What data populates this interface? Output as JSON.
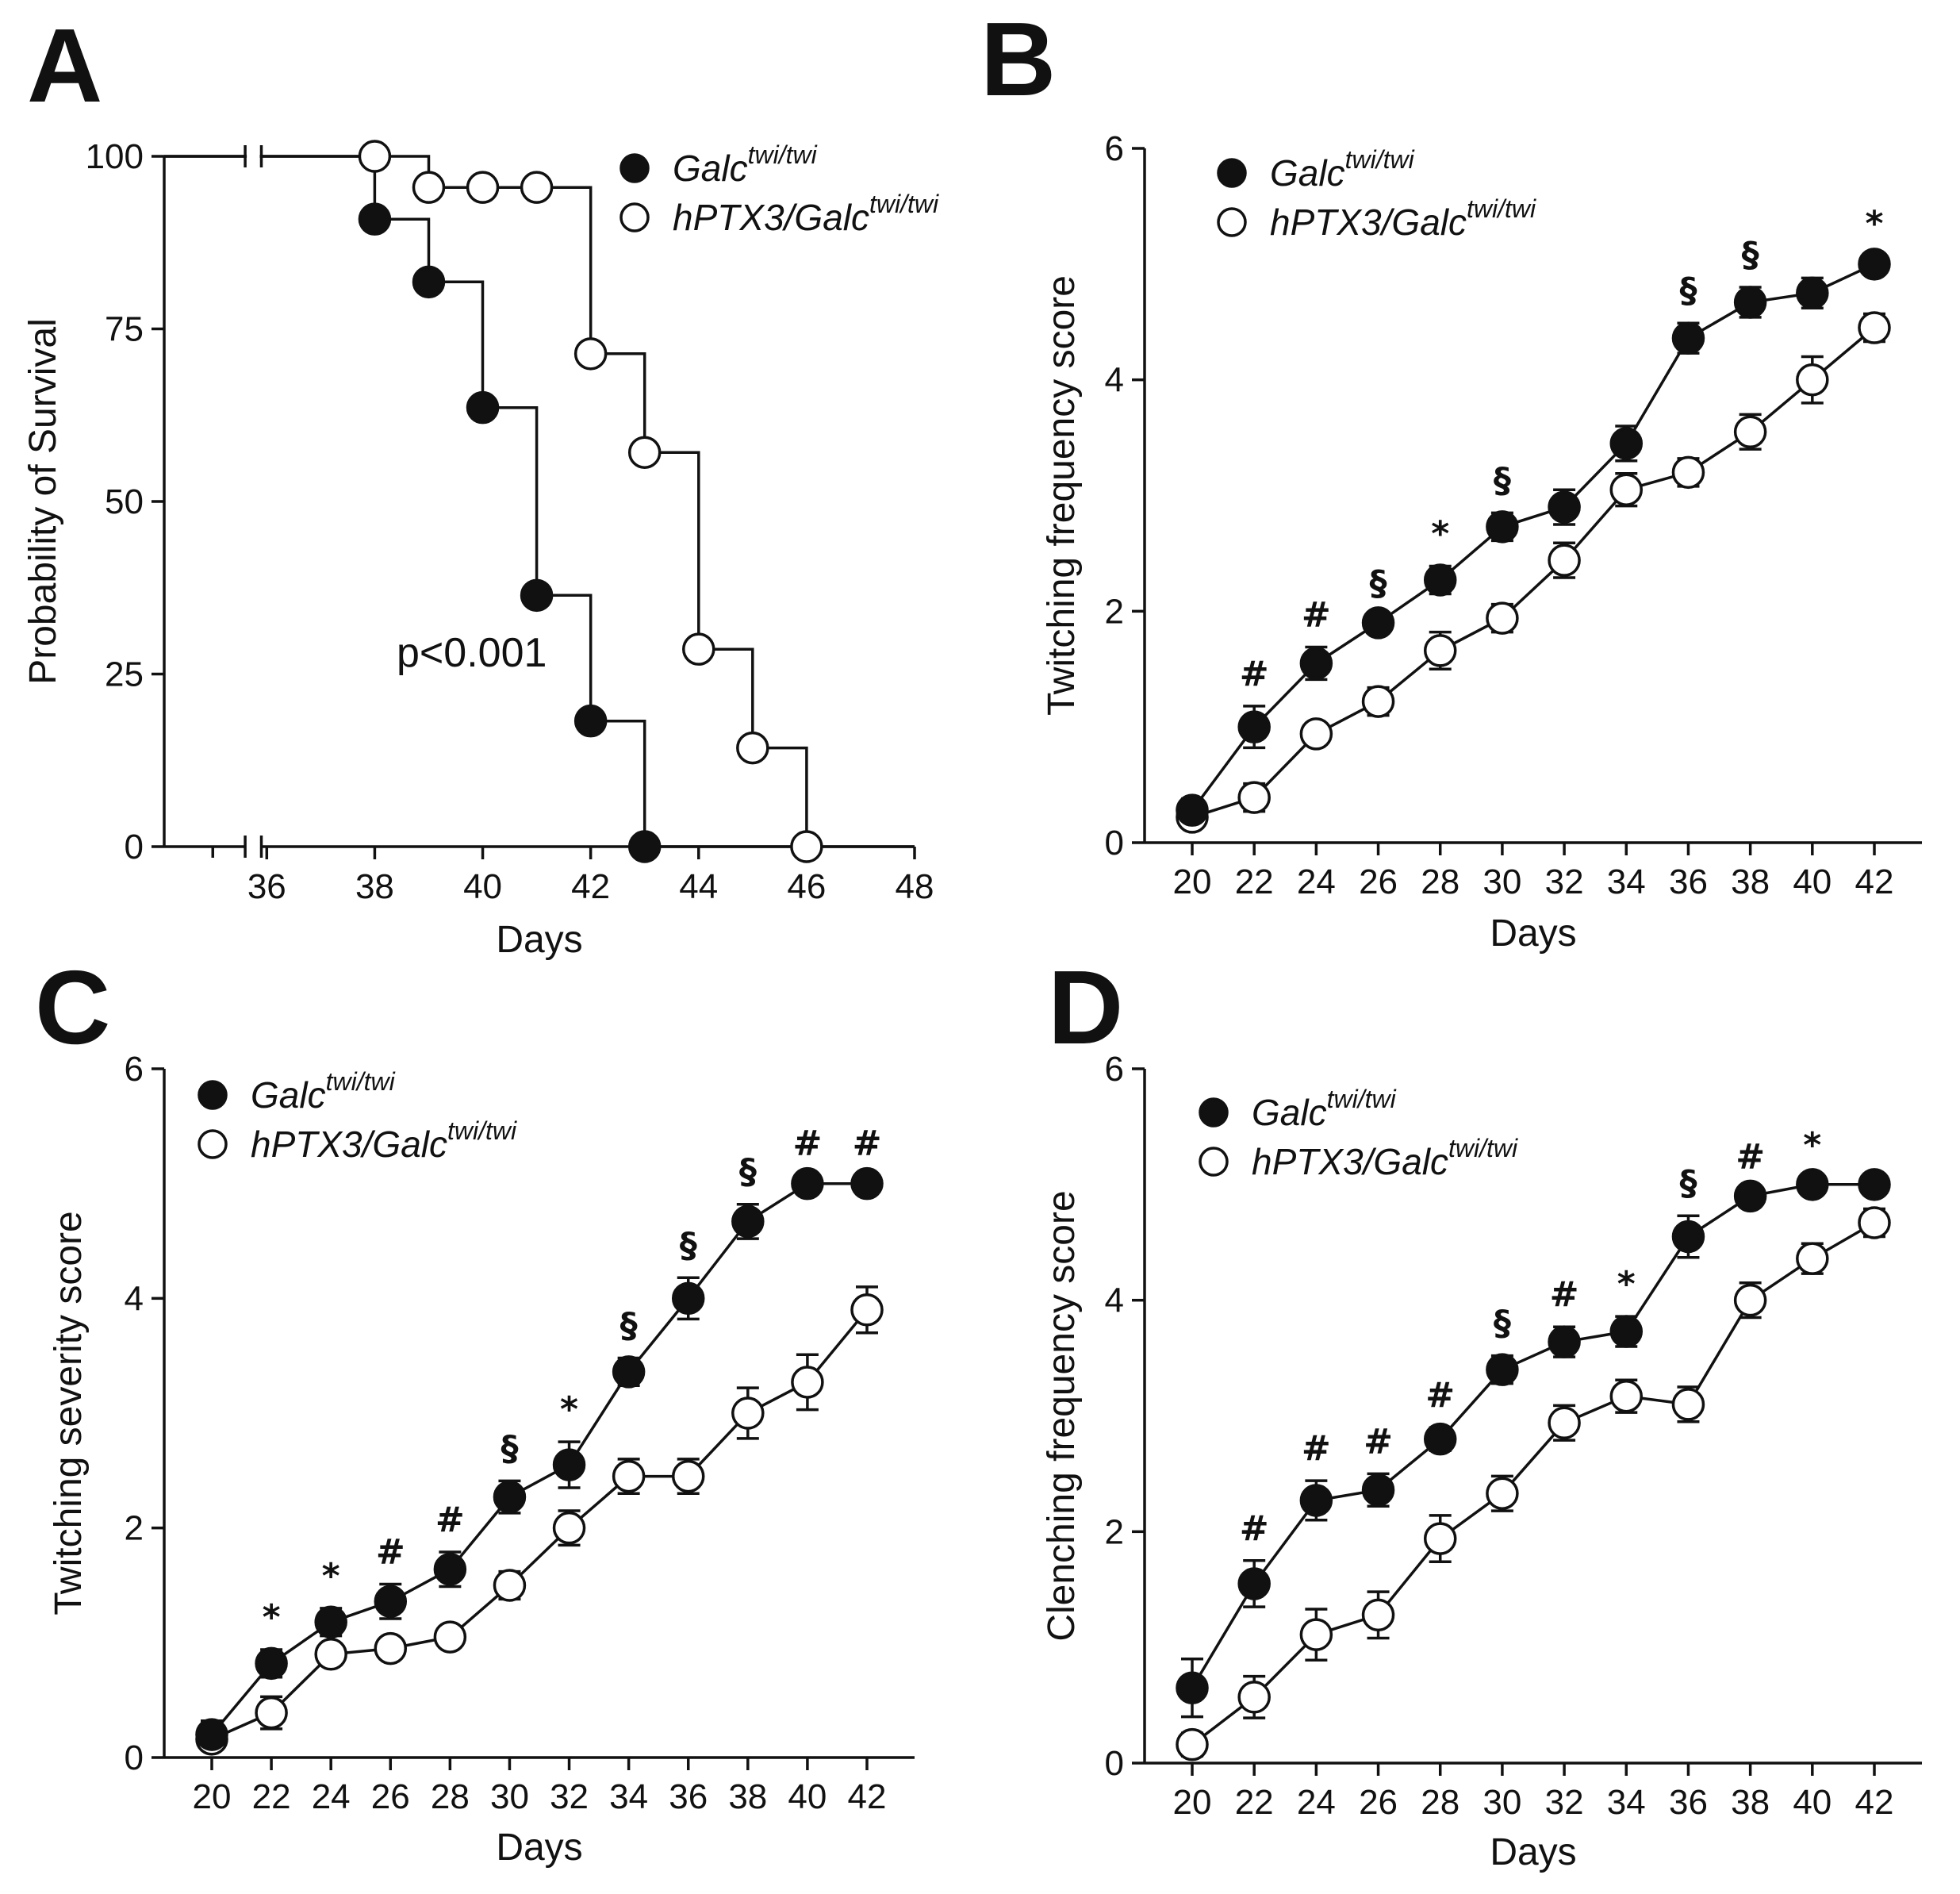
{
  "chart_data": [
    {
      "panel": "A",
      "type": "line",
      "subtype": "kaplan-meier",
      "title": "",
      "xlabel": "Days",
      "ylabel": "Probability of Survival",
      "xlim": [
        34.1,
        48
      ],
      "ylim": [
        0,
        100
      ],
      "x_ticks": [
        "36",
        "38",
        "40",
        "42",
        "44",
        "46",
        "48"
      ],
      "y_ticks": [
        "0",
        "25",
        "50",
        "75",
        "100"
      ],
      "axis_break": true,
      "annotation": "p<0.001",
      "series": [
        {
          "name": "Galc",
          "sup": "twi/twi",
          "filled": true,
          "steps": [
            [
              34.1,
              100
            ],
            [
              38,
              100
            ],
            [
              38,
              90.9
            ],
            [
              39,
              90.9
            ],
            [
              39,
              81.8
            ],
            [
              40,
              81.8
            ],
            [
              40,
              63.6
            ],
            [
              41,
              63.6
            ],
            [
              41,
              36.4
            ],
            [
              42,
              36.4
            ],
            [
              42,
              18.2
            ],
            [
              43,
              18.2
            ],
            [
              43,
              0
            ],
            [
              48,
              0
            ]
          ],
          "markers": [
            [
              38,
              90.9
            ],
            [
              39,
              81.8
            ],
            [
              40,
              63.6
            ],
            [
              41,
              36.4
            ],
            [
              42,
              18.2
            ],
            [
              43,
              0
            ]
          ]
        },
        {
          "name": "hPTX3/Galc",
          "sup": "twi/twi",
          "filled": false,
          "steps": [
            [
              34.1,
              100
            ],
            [
              38,
              100
            ],
            [
              39,
              100
            ],
            [
              39,
              95.5
            ],
            [
              42,
              95.5
            ],
            [
              42,
              71.4
            ],
            [
              43,
              71.4
            ],
            [
              43,
              57.1
            ],
            [
              44,
              57.1
            ],
            [
              44,
              28.6
            ],
            [
              45,
              28.6
            ],
            [
              45,
              14.3
            ],
            [
              46,
              14.3
            ],
            [
              46,
              0
            ]
          ],
          "markers": [
            [
              38,
              100
            ],
            [
              39,
              95.5
            ],
            [
              40,
              95.5
            ],
            [
              41,
              95.5
            ],
            [
              42,
              71.4
            ],
            [
              43,
              57.1
            ],
            [
              44,
              28.6
            ],
            [
              45,
              14.3
            ],
            [
              46,
              0
            ]
          ]
        }
      ]
    },
    {
      "panel": "B",
      "type": "line",
      "title": "",
      "xlabel": "Days",
      "ylabel": "Twitching frequency score",
      "ylim": [
        0,
        6
      ],
      "categories": [
        "20",
        "22",
        "24",
        "26",
        "28",
        "30",
        "32",
        "34",
        "36",
        "38",
        "40",
        "42"
      ],
      "y_ticks": [
        "0",
        "2",
        "4",
        "6"
      ],
      "series": [
        {
          "name": "Galc",
          "sup": "twi/twi",
          "filled": true,
          "values": [
            0.28,
            1.0,
            1.55,
            1.9,
            2.27,
            2.73,
            2.9,
            3.45,
            4.36,
            4.67,
            4.75,
            5.0
          ],
          "errors": [
            0.1,
            0.18,
            0.14,
            0.06,
            0.12,
            0.12,
            0.15,
            0.15,
            0.13,
            0.13,
            0.13,
            0.07
          ]
        },
        {
          "name": "hPTX3/Galc",
          "sup": "twi/twi",
          "filled": false,
          "values": [
            0.22,
            0.39,
            0.94,
            1.22,
            1.66,
            1.94,
            2.44,
            3.05,
            3.2,
            3.55,
            4.0,
            4.45
          ],
          "errors": [
            0.07,
            0.12,
            0.08,
            0.12,
            0.16,
            0.12,
            0.15,
            0.14,
            0.12,
            0.15,
            0.2,
            0.12
          ]
        }
      ],
      "significance": [
        "",
        "#",
        "#",
        "§",
        "*",
        "§",
        "",
        "",
        "§",
        "§",
        "",
        "*"
      ]
    },
    {
      "panel": "C",
      "type": "line",
      "title": "",
      "xlabel": "Days",
      "ylabel": "Twitching severity score",
      "ylim": [
        0,
        6
      ],
      "categories": [
        "20",
        "22",
        "24",
        "26",
        "28",
        "30",
        "32",
        "34",
        "36",
        "38",
        "40",
        "42"
      ],
      "y_ticks": [
        "0",
        "2",
        "4",
        "6"
      ],
      "series": [
        {
          "name": "Galc",
          "sup": "twi/twi",
          "filled": true,
          "values": [
            0.2,
            0.82,
            1.18,
            1.36,
            1.64,
            2.27,
            2.55,
            3.36,
            4.0,
            4.67,
            5.0,
            5.0
          ],
          "errors": [
            0.12,
            0.12,
            0.12,
            0.15,
            0.15,
            0.14,
            0.2,
            0.12,
            0.18,
            0.15,
            0.07,
            0.07
          ]
        },
        {
          "name": "hPTX3/Galc",
          "sup": "twi/twi",
          "filled": false,
          "values": [
            0.16,
            0.39,
            0.9,
            0.95,
            1.05,
            1.5,
            2.0,
            2.45,
            2.45,
            3.0,
            3.27,
            3.9
          ],
          "errors": [
            0.07,
            0.14,
            0.07,
            0.07,
            0.08,
            0.12,
            0.15,
            0.15,
            0.15,
            0.22,
            0.24,
            0.2
          ]
        }
      ],
      "significance": [
        "",
        "*",
        "*",
        "#",
        "#",
        "§",
        "*",
        "§",
        "§",
        "§",
        "#",
        "#"
      ]
    },
    {
      "panel": "D",
      "type": "line",
      "title": "",
      "xlabel": "Days",
      "ylabel": "Clenching frequency  score",
      "ylim": [
        0,
        6
      ],
      "categories": [
        "20",
        "22",
        "24",
        "26",
        "28",
        "30",
        "32",
        "34",
        "36",
        "38",
        "40",
        "42"
      ],
      "y_ticks": [
        "0",
        "2",
        "4",
        "6"
      ],
      "series": [
        {
          "name": "Galc",
          "sup": "twi/twi",
          "filled": true,
          "values": [
            0.65,
            1.55,
            2.27,
            2.36,
            2.8,
            3.4,
            3.64,
            3.73,
            4.55,
            4.9,
            5.0,
            5.0
          ],
          "errors": [
            0.25,
            0.2,
            0.17,
            0.14,
            0.1,
            0.12,
            0.13,
            0.13,
            0.18,
            0.06,
            0.06,
            0.06
          ]
        },
        {
          "name": "hPTX3/Galc",
          "sup": "twi/twi",
          "filled": false,
          "values": [
            0.16,
            0.57,
            1.11,
            1.28,
            1.94,
            2.33,
            2.94,
            3.17,
            3.1,
            4.0,
            4.36,
            4.67
          ],
          "errors": [
            0.1,
            0.18,
            0.22,
            0.2,
            0.2,
            0.15,
            0.15,
            0.14,
            0.15,
            0.15,
            0.13,
            0.12
          ]
        }
      ],
      "significance": [
        "",
        "#",
        "#",
        "#",
        "#",
        "§",
        "#",
        "*",
        "§",
        "#",
        "*",
        ""
      ]
    }
  ]
}
